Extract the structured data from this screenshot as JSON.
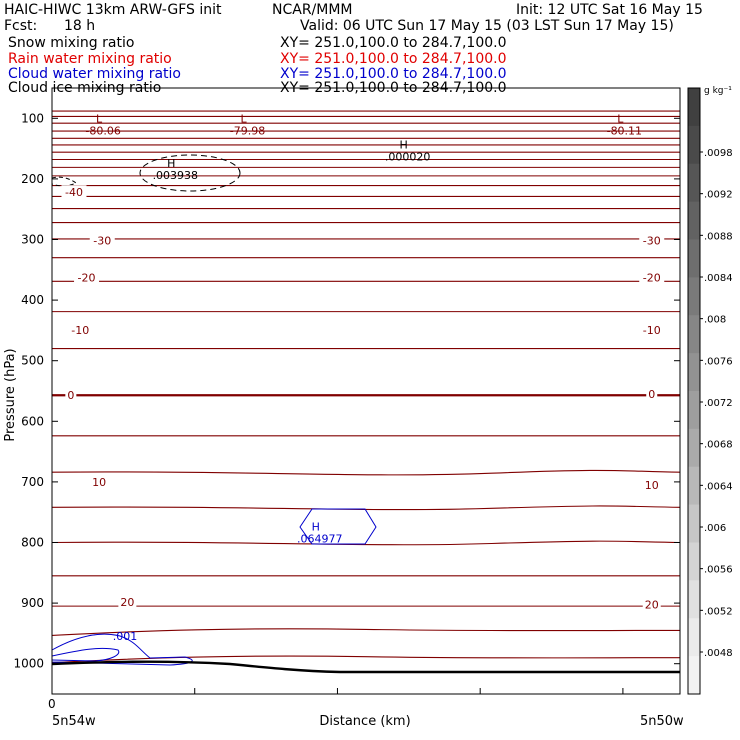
{
  "header": {
    "model_title": "HAIC-HIWC 13km ARW-GFS init",
    "org": "NCAR/MMM",
    "init": "Init: 12 UTC Sat 16 May 15",
    "fcst_label": "Fcst:",
    "fcst_value": "18 h",
    "valid": "Valid: 06 UTC Sun 17 May 15 (03 LST Sun 17 May 15)"
  },
  "fields": [
    {
      "name": "Snow mixing ratio",
      "xy": "XY=  251.0,100.0 to 284.7,100.0",
      "color": "#000000"
    },
    {
      "name": "Rain water mixing ratio",
      "xy": "XY=  251.0,100.0 to 284.7,100.0",
      "color": "#e00000"
    },
    {
      "name": "Cloud water mixing ratio",
      "xy": "XY=  251.0,100.0 to 284.7,100.0",
      "color": "#0000cc"
    },
    {
      "name": "Cloud ice mixing ratio",
      "xy": "XY=  251.0,100.0 to 284.7,100.0",
      "color": "#000000"
    }
  ],
  "chart_data": {
    "type": "cross-section",
    "ylabel": "Pressure (hPa)",
    "xlabel": "Distance (km)",
    "x_left_label": "5n54w",
    "x_right_label": "5n50w",
    "x_zero_label": "0",
    "y_range_hpa": [
      50,
      1050
    ],
    "y_ticks": [
      100,
      200,
      300,
      400,
      500,
      600,
      700,
      800,
      900,
      1000
    ],
    "temperature_labels": [
      {
        "text": "-40",
        "x_frac": 0.035,
        "p": 222,
        "color": "#800000"
      },
      {
        "text": "-30",
        "x_frac": 0.08,
        "p": 302,
        "color": "#800000"
      },
      {
        "text": "-30",
        "x_frac": 0.955,
        "p": 302,
        "color": "#800000"
      },
      {
        "text": "-20",
        "x_frac": 0.055,
        "p": 363,
        "color": "#800000"
      },
      {
        "text": "-20",
        "x_frac": 0.955,
        "p": 363,
        "color": "#800000"
      },
      {
        "text": "-10",
        "x_frac": 0.045,
        "p": 449,
        "color": "#800000"
      },
      {
        "text": "-10",
        "x_frac": 0.955,
        "p": 449,
        "color": "#800000"
      },
      {
        "text": "0",
        "x_frac": 0.03,
        "p": 557,
        "color": "#800000"
      },
      {
        "text": "0",
        "x_frac": 0.955,
        "p": 555,
        "color": "#800000"
      },
      {
        "text": "10",
        "x_frac": 0.075,
        "p": 700,
        "color": "#800000"
      },
      {
        "text": "10",
        "x_frac": 0.955,
        "p": 705,
        "color": "#800000"
      },
      {
        "text": "20",
        "x_frac": 0.12,
        "p": 898,
        "color": "#800000"
      },
      {
        "text": "20",
        "x_frac": 0.955,
        "p": 902,
        "color": "#800000"
      }
    ],
    "extrema": [
      {
        "type": "L",
        "value": "-80.06",
        "x_frac": 0.075,
        "p": 107
      },
      {
        "type": "L",
        "value": "-79.98",
        "x_frac": 0.305,
        "p": 107
      },
      {
        "type": "L",
        "value": "-80.11",
        "x_frac": 0.905,
        "p": 107
      },
      {
        "type": "H",
        "value": ".000020",
        "x_frac": 0.56,
        "p": 150
      },
      {
        "type": "H",
        "value": ".003938",
        "x_frac": 0.19,
        "p": 180
      },
      {
        "type": "H",
        "value": ".064977",
        "x_frac": 0.42,
        "p": 780
      }
    ],
    "cloud_water_contour_label": ".001",
    "colorbar": {
      "unit": "g kg⁻¹",
      "labels": [
        ".0098",
        ".0092",
        ".0088",
        ".0084",
        ".008",
        ".0076",
        ".0072",
        ".0068",
        ".0064",
        ".006",
        ".0056",
        ".0052",
        ".0048"
      ],
      "colors": [
        "#404040",
        "#4a4a4a",
        "#565656",
        "#626262",
        "#6e6e6e",
        "#7a7a7a",
        "#868686",
        "#929292",
        "#9e9e9e",
        "#aaaaaa",
        "#b8b8b8",
        "#c6c6c6",
        "#d4d4d4",
        "#e0e0e0",
        "#ebebeb",
        "#f3f3f3"
      ]
    },
    "theta_lines_hpa": [
      88,
      97,
      108,
      121,
      133,
      144,
      156,
      168,
      181,
      195,
      211,
      229,
      249,
      272,
      299,
      330,
      369,
      419,
      480,
      557,
      624,
      684,
      742,
      800,
      855,
      905,
      950,
      995
    ]
  }
}
